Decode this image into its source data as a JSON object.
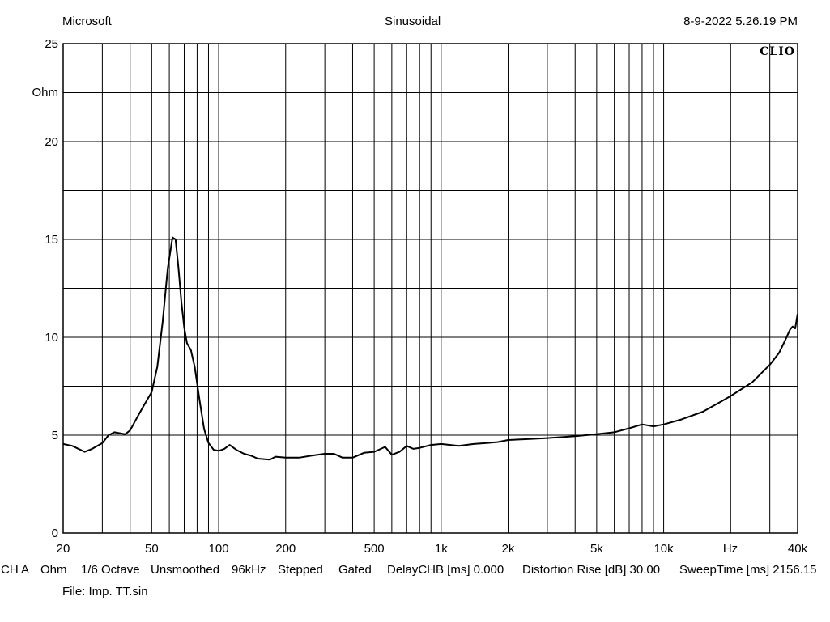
{
  "header": {
    "left": "Microsoft",
    "center": "Sinusoidal",
    "right": "8-9-2022 5.26.19 PM"
  },
  "brand": "CLIO",
  "footer": {
    "channel": "CH A",
    "unit": "Ohm",
    "octave": "1/6 Octave",
    "smoothing": "Unsmoothed",
    "sample_rate": "96kHz",
    "mode": "Stepped",
    "gating": "Gated",
    "delay": "DelayCHB [ms] 0.000",
    "distortion": "Distortion Rise [dB] 30.00",
    "sweep": "SweepTime [ms] 2156.15",
    "file": "File: Imp. TT.sin"
  },
  "chart_data": {
    "type": "line",
    "title": "",
    "xlabel": "Hz",
    "ylabel": "Ohm",
    "x_scale": "log",
    "xlim": [
      20,
      40000
    ],
    "ylim": [
      0,
      25
    ],
    "grid": true,
    "x_tick_labels": [
      {
        "value": 20,
        "label": "20"
      },
      {
        "value": 50,
        "label": "50"
      },
      {
        "value": 100,
        "label": "100"
      },
      {
        "value": 200,
        "label": "200"
      },
      {
        "value": 500,
        "label": "500"
      },
      {
        "value": 1000,
        "label": "1k"
      },
      {
        "value": 2000,
        "label": "2k"
      },
      {
        "value": 5000,
        "label": "5k"
      },
      {
        "value": 10000,
        "label": "10k"
      },
      {
        "value": 40000,
        "label": "40k"
      }
    ],
    "y_tick_labels": [
      {
        "value": 0,
        "label": "0"
      },
      {
        "value": 5,
        "label": "5"
      },
      {
        "value": 10,
        "label": "10"
      },
      {
        "value": 15,
        "label": "15"
      },
      {
        "value": 20,
        "label": "20"
      },
      {
        "value": 25,
        "label": "25"
      }
    ],
    "y_grid_step": 2.5,
    "series": [
      {
        "color": "#000000",
        "x": [
          20,
          22,
          25,
          27,
          30,
          32,
          34,
          36,
          38,
          40,
          43,
          46,
          50,
          53,
          56,
          59,
          62,
          64,
          66,
          68,
          70,
          72,
          75,
          78,
          82,
          86,
          90,
          95,
          100,
          106,
          112,
          120,
          130,
          140,
          150,
          170,
          180,
          200,
          230,
          260,
          300,
          330,
          360,
          400,
          450,
          500,
          560,
          600,
          650,
          700,
          750,
          800,
          900,
          1000,
          1200,
          1400,
          1600,
          1800,
          2000,
          2500,
          3000,
          4000,
          5000,
          6000,
          7000,
          8000,
          9000,
          10000,
          12000,
          15000,
          18000,
          20000,
          25000,
          30000,
          33000,
          35000,
          37000,
          38000,
          39000,
          40000
        ],
        "y": [
          4.55,
          4.45,
          4.15,
          4.3,
          4.6,
          5.0,
          5.15,
          5.1,
          5.05,
          5.25,
          5.9,
          6.5,
          7.2,
          8.5,
          10.8,
          13.5,
          15.1,
          15.0,
          13.5,
          11.8,
          10.5,
          9.7,
          9.35,
          8.5,
          6.8,
          5.3,
          4.6,
          4.25,
          4.2,
          4.3,
          4.5,
          4.25,
          4.05,
          3.95,
          3.8,
          3.75,
          3.9,
          3.85,
          3.85,
          3.95,
          4.05,
          4.05,
          3.85,
          3.85,
          4.1,
          4.15,
          4.4,
          4.0,
          4.15,
          4.45,
          4.3,
          4.35,
          4.5,
          4.55,
          4.45,
          4.55,
          4.6,
          4.65,
          4.75,
          4.8,
          4.85,
          4.95,
          5.05,
          5.15,
          5.35,
          5.55,
          5.45,
          5.55,
          5.8,
          6.2,
          6.7,
          7.0,
          7.7,
          8.6,
          9.2,
          9.8,
          10.4,
          10.55,
          10.45,
          11.2
        ]
      }
    ]
  }
}
